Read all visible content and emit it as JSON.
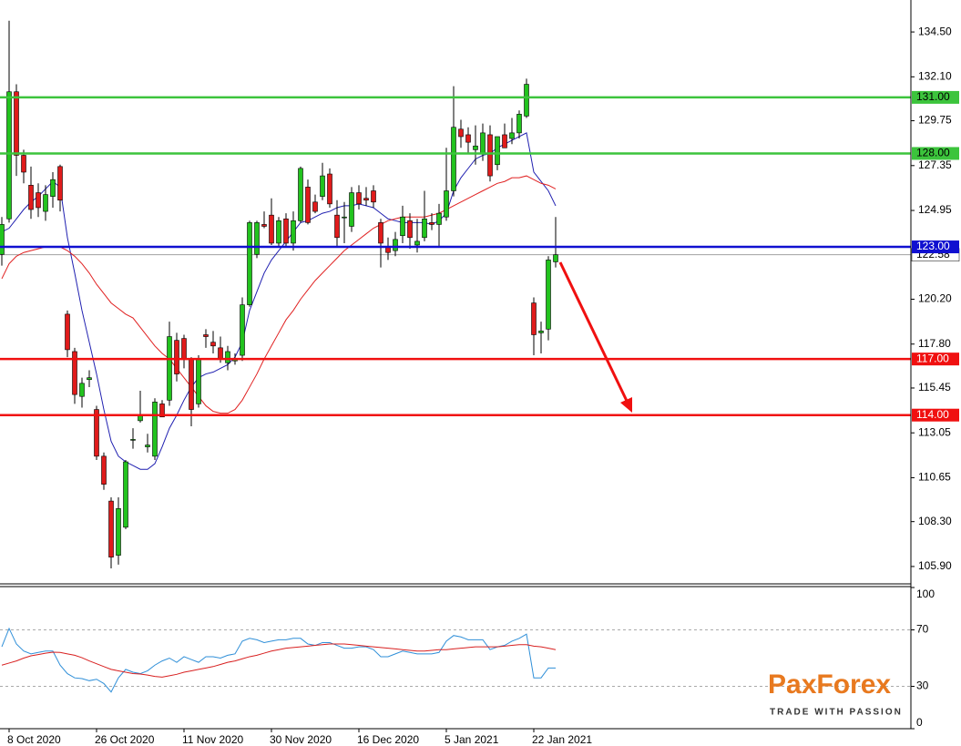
{
  "chart_data": [
    {
      "type": "candlestick",
      "categories": [
        null,
        "8 Oct 2020",
        null,
        null,
        null,
        null,
        null,
        null,
        null,
        null,
        null,
        null,
        null,
        "26 Oct 2020",
        null,
        null,
        null,
        null,
        null,
        null,
        null,
        null,
        null,
        null,
        null,
        "11 Nov 2020",
        null,
        null,
        null,
        null,
        null,
        null,
        null,
        null,
        null,
        null,
        null,
        "30 Nov 2020",
        null,
        null,
        null,
        null,
        null,
        null,
        null,
        null,
        null,
        null,
        null,
        "16 Dec 2020",
        null,
        null,
        null,
        null,
        null,
        null,
        null,
        null,
        null,
        null,
        null,
        "5 Jan 2021",
        null,
        null,
        null,
        null,
        null,
        null,
        null,
        null,
        null,
        null,
        null,
        "22 Jan 2021",
        null,
        null,
        null
      ],
      "open": [
        122.6,
        124.5,
        131.3,
        127.9,
        126.3,
        125.9,
        124.9,
        125.7,
        127.3,
        119.4,
        117.4,
        115.0,
        115.9,
        114.3,
        111.8,
        109.4,
        106.5,
        108.0,
        112.7,
        113.7,
        112.3,
        111.8,
        114.6,
        114.8,
        118.0,
        118.1,
        117.0,
        114.6,
        118.3,
        117.9,
        117.6,
        116.8,
        116.9,
        117.2,
        119.9,
        122.6,
        124.2,
        124.7,
        123.2,
        124.5,
        123.2,
        124.4,
        126.2,
        125.4,
        125.7,
        126.9,
        124.7,
        124.6,
        124.1,
        125.9,
        125.6,
        126.0,
        124.3,
        123.0,
        122.8,
        123.6,
        124.4,
        123.1,
        123.5,
        124.3,
        124.2,
        124.6,
        126.0,
        129.3,
        129.0,
        128.2,
        128.0,
        129.0,
        127.4,
        129.0,
        128.8,
        129.1,
        130.0,
        120.0,
        118.4,
        118.6,
        122.2
      ],
      "high": [
        124.6,
        135.1,
        131.7,
        128.2,
        127.3,
        126.4,
        126.3,
        127.0,
        127.4,
        119.6,
        117.6,
        116.0,
        116.4,
        114.5,
        112.0,
        109.6,
        109.6,
        111.6,
        113.3,
        115.3,
        113.0,
        114.9,
        114.8,
        119.0,
        118.4,
        118.3,
        117.1,
        117.2,
        118.6,
        118.5,
        118.2,
        117.7,
        117.3,
        120.3,
        124.4,
        124.4,
        124.9,
        125.6,
        124.6,
        124.8,
        124.9,
        127.3,
        126.6,
        125.8,
        127.5,
        127.2,
        125.5,
        125.4,
        126.2,
        126.3,
        126.2,
        126.3,
        124.5,
        123.5,
        123.8,
        125.2,
        124.8,
        124.5,
        126.0,
        124.8,
        125.3,
        128.3,
        131.6,
        129.8,
        129.4,
        129.5,
        129.6,
        129.5,
        128.9,
        129.6,
        129.9,
        130.3,
        132.0,
        120.3,
        119.0,
        122.5,
        124.6
      ],
      "low": [
        122.0,
        124.3,
        126.8,
        126.4,
        124.5,
        124.6,
        124.4,
        125.1,
        124.9,
        117.1,
        114.6,
        114.4,
        115.5,
        111.6,
        110.0,
        105.8,
        106.0,
        107.9,
        112.2,
        113.6,
        112.0,
        111.6,
        113.9,
        114.5,
        115.8,
        116.5,
        113.4,
        114.4,
        117.6,
        117.3,
        116.8,
        116.4,
        116.7,
        116.9,
        119.8,
        122.4,
        124.0,
        123.1,
        123.0,
        123.0,
        122.8,
        124.3,
        124.2,
        124.8,
        125.5,
        125.1,
        123.0,
        123.2,
        123.8,
        125.0,
        125.2,
        125.1,
        121.9,
        122.3,
        122.5,
        123.2,
        122.9,
        122.7,
        123.3,
        123.9,
        123.0,
        124.4,
        125.7,
        128.3,
        128.0,
        127.4,
        127.6,
        126.5,
        127.1,
        128.3,
        128.5,
        128.8,
        129.9,
        117.2,
        117.3,
        118.0,
        121.9
      ],
      "close": [
        124.2,
        131.3,
        127.9,
        127.0,
        125.0,
        125.1,
        125.8,
        126.6,
        125.5,
        117.5,
        115.1,
        115.7,
        116.0,
        111.8,
        110.3,
        106.4,
        109.0,
        111.5,
        112.7,
        114.0,
        112.4,
        114.7,
        113.9,
        118.2,
        116.2,
        117.0,
        114.3,
        117.0,
        118.2,
        117.7,
        117.0,
        117.4,
        117.0,
        119.9,
        124.3,
        124.3,
        124.1,
        123.2,
        124.4,
        123.2,
        124.4,
        127.2,
        124.3,
        124.9,
        126.8,
        125.3,
        123.5,
        124.6,
        125.9,
        125.3,
        125.5,
        125.4,
        123.2,
        122.7,
        123.4,
        124.6,
        123.5,
        123.3,
        124.5,
        124.2,
        124.8,
        126.0,
        129.4,
        128.9,
        128.6,
        128.4,
        129.1,
        126.8,
        128.9,
        128.3,
        129.1,
        130.1,
        131.7,
        118.3,
        118.5,
        122.3,
        122.58
      ],
      "up_color": "#22c31e",
      "down_color": "#e01b1b",
      "series": [
        {
          "color": "#1f1fb0",
          "values": [
            123.8,
            124.0,
            124.5,
            125.0,
            125.4,
            125.7,
            126.1,
            126.5,
            126.2,
            123.5,
            121.6,
            119.6,
            117.9,
            116.2,
            114.3,
            112.6,
            111.8,
            111.5,
            111.3,
            111.1,
            111.1,
            111.4,
            112.3,
            113.3,
            114.0,
            114.8,
            115.5,
            116.0,
            116.2,
            116.3,
            116.5,
            116.7,
            117.1,
            117.9,
            119.6,
            120.6,
            121.6,
            122.3,
            122.8,
            123.3,
            123.8,
            124.3,
            124.4,
            124.6,
            124.8,
            124.9,
            125.1,
            125.2,
            125.2,
            125.3,
            125.2,
            125.1,
            124.8,
            124.5,
            124.4,
            124.3,
            124.3,
            124.3,
            124.3,
            124.2,
            124.4,
            124.8,
            126.0,
            126.7,
            127.2,
            127.7,
            127.9,
            128.0,
            128.3,
            128.5,
            128.7,
            128.9,
            129.1,
            127.0,
            126.5,
            126.0,
            125.2
          ]
        },
        {
          "color": "#e02020",
          "values": [
            121.3,
            122.1,
            122.5,
            122.7,
            122.8,
            122.9,
            123.0,
            123.0,
            123.0,
            122.8,
            122.5,
            122.1,
            121.6,
            121.0,
            120.5,
            120.0,
            119.7,
            119.4,
            119.2,
            118.7,
            118.2,
            117.7,
            117.3,
            117.0,
            116.5,
            116.0,
            115.5,
            115.0,
            114.5,
            114.2,
            114.1,
            114.1,
            114.3,
            114.8,
            115.5,
            116.2,
            117.0,
            117.7,
            118.4,
            119.1,
            119.6,
            120.2,
            120.7,
            121.2,
            121.6,
            122.0,
            122.4,
            122.8,
            123.1,
            123.4,
            123.7,
            124.0,
            124.2,
            124.4,
            124.5,
            124.6,
            124.6,
            124.6,
            124.6,
            124.7,
            124.8,
            125.0,
            125.2,
            125.4,
            125.6,
            125.8,
            126.0,
            126.2,
            126.4,
            126.5,
            126.7,
            126.7,
            126.8,
            126.6,
            126.4,
            126.3,
            126.1
          ]
        }
      ],
      "ylim": [
        104.97,
        136.21
      ],
      "yticks": [
        {
          "value": 134.5,
          "label": "134.50"
        },
        {
          "value": 132.1,
          "label": "132.10"
        },
        129.75,
        127.35,
        124.95,
        {
          "value": 120.2,
          "label": "120.20"
        },
        {
          "value": 117.8,
          "label": "117.80"
        },
        115.45,
        113.05,
        110.65,
        {
          "value": 108.3,
          "label": "108.30"
        },
        {
          "value": 105.9,
          "label": "105.90"
        }
      ],
      "current_price": {
        "value": 122.58,
        "label": "122.58",
        "color": "#a0a0a0"
      },
      "levels": [
        {
          "value": 131,
          "label": "131.00",
          "color": "#3cc43c",
          "text_color": "#000000"
        },
        {
          "value": 128,
          "label": "128.00",
          "color": "#3cc43c",
          "text_color": "#000000"
        },
        {
          "value": 123,
          "label": "123.00",
          "color": "#1010d0",
          "text_color": "#ffffff"
        },
        {
          "value": 117,
          "label": "117.00",
          "color": "#f01010",
          "text_color": "#ffffff"
        },
        {
          "value": 114,
          "label": "114.00",
          "color": "#f01010",
          "text_color": "#ffffff"
        }
      ]
    },
    {
      "type": "line",
      "series": [
        {
          "color": "#2f8fd8",
          "values": [
            58,
            71,
            60,
            55,
            53,
            54,
            55,
            55,
            45,
            39,
            36,
            35.5,
            34,
            35,
            32,
            26,
            36,
            42,
            40,
            39,
            41,
            45,
            48,
            50,
            47,
            51,
            49,
            47,
            51,
            51,
            50,
            52,
            53,
            62,
            64,
            63,
            61,
            62,
            63,
            63,
            64,
            64,
            60,
            59,
            61,
            61,
            59,
            57,
            57,
            58,
            58,
            56,
            51,
            51,
            53,
            55,
            54,
            53,
            53,
            53,
            54,
            62,
            66,
            65,
            63,
            63,
            63,
            56,
            58,
            59,
            62,
            64,
            67,
            36,
            36,
            43,
            43
          ]
        },
        {
          "color": "#d82020",
          "values": [
            45,
            46.5,
            48,
            50,
            51.6,
            52.5,
            53.5,
            54.2,
            54,
            53,
            52,
            50.3,
            48,
            46,
            44,
            42,
            41,
            40,
            39,
            38.7,
            38,
            37,
            36.5,
            37.5,
            38.5,
            40,
            41,
            42,
            43,
            44,
            45.5,
            47,
            48,
            49.5,
            51,
            52,
            53.5,
            55,
            56,
            57,
            57.5,
            58,
            58.5,
            59,
            59.5,
            60,
            60,
            60,
            59.5,
            59,
            58.5,
            58,
            57.5,
            57,
            56.5,
            56,
            55.5,
            55,
            55,
            55.5,
            56,
            56,
            56.5,
            57,
            57.5,
            58,
            58,
            58,
            58,
            58.5,
            59,
            59.5,
            59.5,
            58.5,
            58,
            57,
            56
          ]
        }
      ],
      "ylim": [
        0,
        100
      ],
      "yticks": [
        100,
        70,
        30,
        0
      ],
      "dashed_levels": [
        70,
        30
      ]
    }
  ],
  "logo": {
    "name": "PaxForex",
    "tagline": "TRADE WITH PASSION"
  }
}
